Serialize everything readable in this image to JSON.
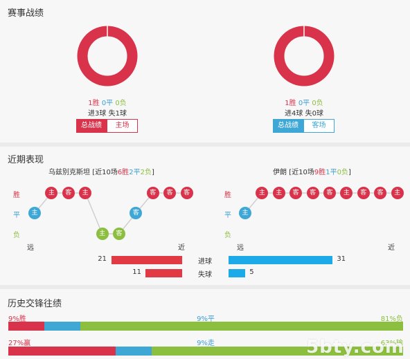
{
  "record": {
    "title": "赛事战绩",
    "left": {
      "win": "1胜",
      "draw": "0平",
      "loss": "0负",
      "goals": "进3球 失1球",
      "tab_active": "总战绩",
      "tab_other": "主场"
    },
    "right": {
      "win": "1胜",
      "draw": "0平",
      "loss": "0负",
      "goals": "进4球 失0球",
      "tab_active": "总战绩",
      "tab_other": "客场"
    },
    "colors": {
      "win": "#d8334a",
      "draw": "#3ea7d6",
      "loss": "#8cbf3f"
    }
  },
  "recent": {
    "title": "近期表现",
    "axis": {
      "win": "胜",
      "draw": "平",
      "loss": "负",
      "far": "远",
      "near": "近"
    },
    "left": {
      "team": "乌兹别克斯坦",
      "summary_pre": "[近10场",
      "w": "6胜",
      "d": "2平",
      "l": "2负",
      "summary_post": "]",
      "results": [
        {
          "r": "D",
          "label": "主"
        },
        {
          "r": "W",
          "label": "主"
        },
        {
          "r": "W",
          "label": "客"
        },
        {
          "r": "W",
          "label": "主"
        },
        {
          "r": "L",
          "label": "主"
        },
        {
          "r": "L",
          "label": "客"
        },
        {
          "r": "D",
          "label": "客"
        },
        {
          "r": "W",
          "label": "客"
        },
        {
          "r": "W",
          "label": "客"
        },
        {
          "r": "W",
          "label": "客"
        }
      ]
    },
    "right": {
      "team": "伊朗",
      "summary_pre": "[近10场",
      "w": "9胜",
      "d": "1平",
      "l": "0负",
      "summary_post": "]",
      "results": [
        {
          "r": "D",
          "label": "主"
        },
        {
          "r": "W",
          "label": "主"
        },
        {
          "r": "W",
          "label": "主"
        },
        {
          "r": "W",
          "label": "客"
        },
        {
          "r": "W",
          "label": "客"
        },
        {
          "r": "W",
          "label": "客"
        },
        {
          "r": "W",
          "label": "主"
        },
        {
          "r": "W",
          "label": "客"
        },
        {
          "r": "W",
          "label": "客"
        },
        {
          "r": "W",
          "label": "主"
        }
      ]
    },
    "goals": {
      "scored_label": "进球",
      "conceded_label": "失球",
      "left_scored": 21,
      "left_conceded": 11,
      "right_scored": 31,
      "right_conceded": 5
    }
  },
  "history": {
    "title": "历史交锋往绩",
    "row1": {
      "left": "9%胜",
      "mid": "9%平",
      "right": "81%负",
      "w": 9,
      "d": 9,
      "l": 81
    },
    "row2": {
      "left": "27%赢",
      "mid": "9%走",
      "right": "63%输",
      "w": 27,
      "d": 9,
      "l": 63
    }
  },
  "watermark": "5bty.com"
}
